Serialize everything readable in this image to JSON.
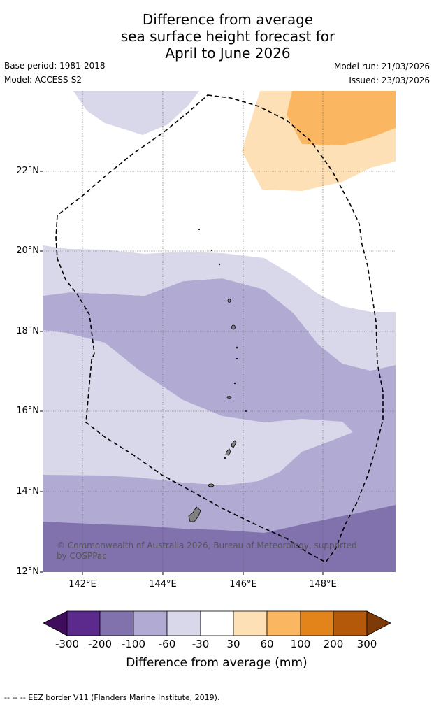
{
  "title": {
    "line1": "Difference from average",
    "line2": "sea surface height forecast for",
    "line3": "April to June 2026"
  },
  "meta": {
    "base_period": "Base period: 1981-2018",
    "model": "Model: ACCESS-S2",
    "model_run": "Model run: 21/03/2026",
    "issued": "Issued: 23/03/2026"
  },
  "latitude_labels": [
    "22°N",
    "20°N",
    "18°N",
    "16°N",
    "14°N",
    "12°N"
  ],
  "longitude_labels": [
    "142°E",
    "144°E",
    "146°E",
    "148°E"
  ],
  "credit": "© Commonwealth of Australia 2026, Bureau of Meteorology, supported by COSPPac",
  "colorbar": {
    "ticks": [
      "-300",
      "-200",
      "-100",
      "-60",
      "-30",
      "30",
      "60",
      "100",
      "200",
      "300"
    ],
    "title": "Difference from average (mm)",
    "colors": {
      "below_min": "#3f0d5c",
      "-300_-200": "#5b2a8c",
      "-200_-100": "#8172ad",
      "-100_-60": "#b1abd3",
      "-60_-30": "#d8d8ea",
      "-30_30": "#ffffff",
      "30_60": "#fde0b5",
      "60_100": "#fbb662",
      "100_200": "#e2841a",
      "200_300": "#b4580a",
      "above_max": "#7e3b08"
    }
  },
  "footer": "--  --  -- EEZ border V11 (Flanders Marine Institute, 2019)."
}
